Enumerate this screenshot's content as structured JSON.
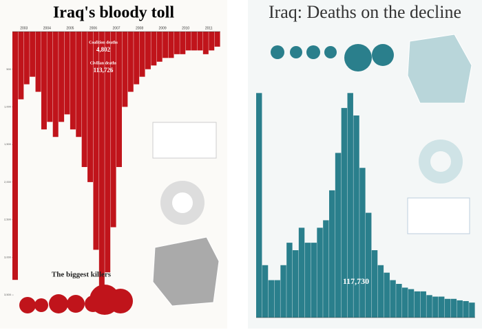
{
  "chart_data": [
    {
      "type": "bar",
      "title": "Iraq's bloody toll",
      "categories": [
        "2003",
        null,
        null,
        null,
        "2004",
        null,
        null,
        null,
        "2005",
        null,
        null,
        null,
        "2006",
        null,
        null,
        null,
        "2007",
        null,
        null,
        null,
        "2008",
        null,
        null,
        null,
        "2009",
        null,
        null,
        null,
        "2010",
        null,
        null,
        null,
        "2011",
        null,
        null,
        null
      ],
      "values": [
        3300,
        900,
        700,
        600,
        800,
        1300,
        1200,
        1400,
        1200,
        1100,
        1300,
        1400,
        1800,
        2000,
        2900,
        3400,
        3200,
        2600,
        1800,
        1000,
        800,
        700,
        600,
        500,
        450,
        400,
        350,
        350,
        300,
        300,
        250,
        250,
        250,
        300,
        250,
        200
      ],
      "color": "#c0141b",
      "inverted": true,
      "ylim": [
        0,
        3600
      ],
      "yticks": [
        500,
        {
          "value": 1000,
          "label": "1,000"
        },
        {
          "value": 1500,
          "label": "1,500"
        },
        {
          "value": 2000,
          "label": "2,000"
        },
        {
          "value": 2500,
          "label": "2,500"
        },
        {
          "value": 3000,
          "label": "3,000"
        },
        {
          "value": 3500,
          "label": "3,500"
        }
      ],
      "annotations": [
        "Coalition deaths",
        "4,802",
        "Civilian deaths",
        "113,726",
        "The biggest killers"
      ]
    },
    {
      "type": "bar",
      "title": "Iraq: Deaths on the decline",
      "values": [
        3000,
        700,
        500,
        500,
        700,
        1000,
        900,
        1200,
        1000,
        1000,
        1200,
        1300,
        1700,
        2200,
        2800,
        3000,
        2700,
        2000,
        1400,
        900,
        700,
        600,
        500,
        450,
        400,
        380,
        350,
        350,
        300,
        280,
        280,
        250,
        250,
        230,
        220,
        200
      ],
      "color": "#2a7f8c",
      "inverted": false,
      "ylim": [
        0,
        3600
      ],
      "annotations": [
        "117,730"
      ]
    }
  ]
}
